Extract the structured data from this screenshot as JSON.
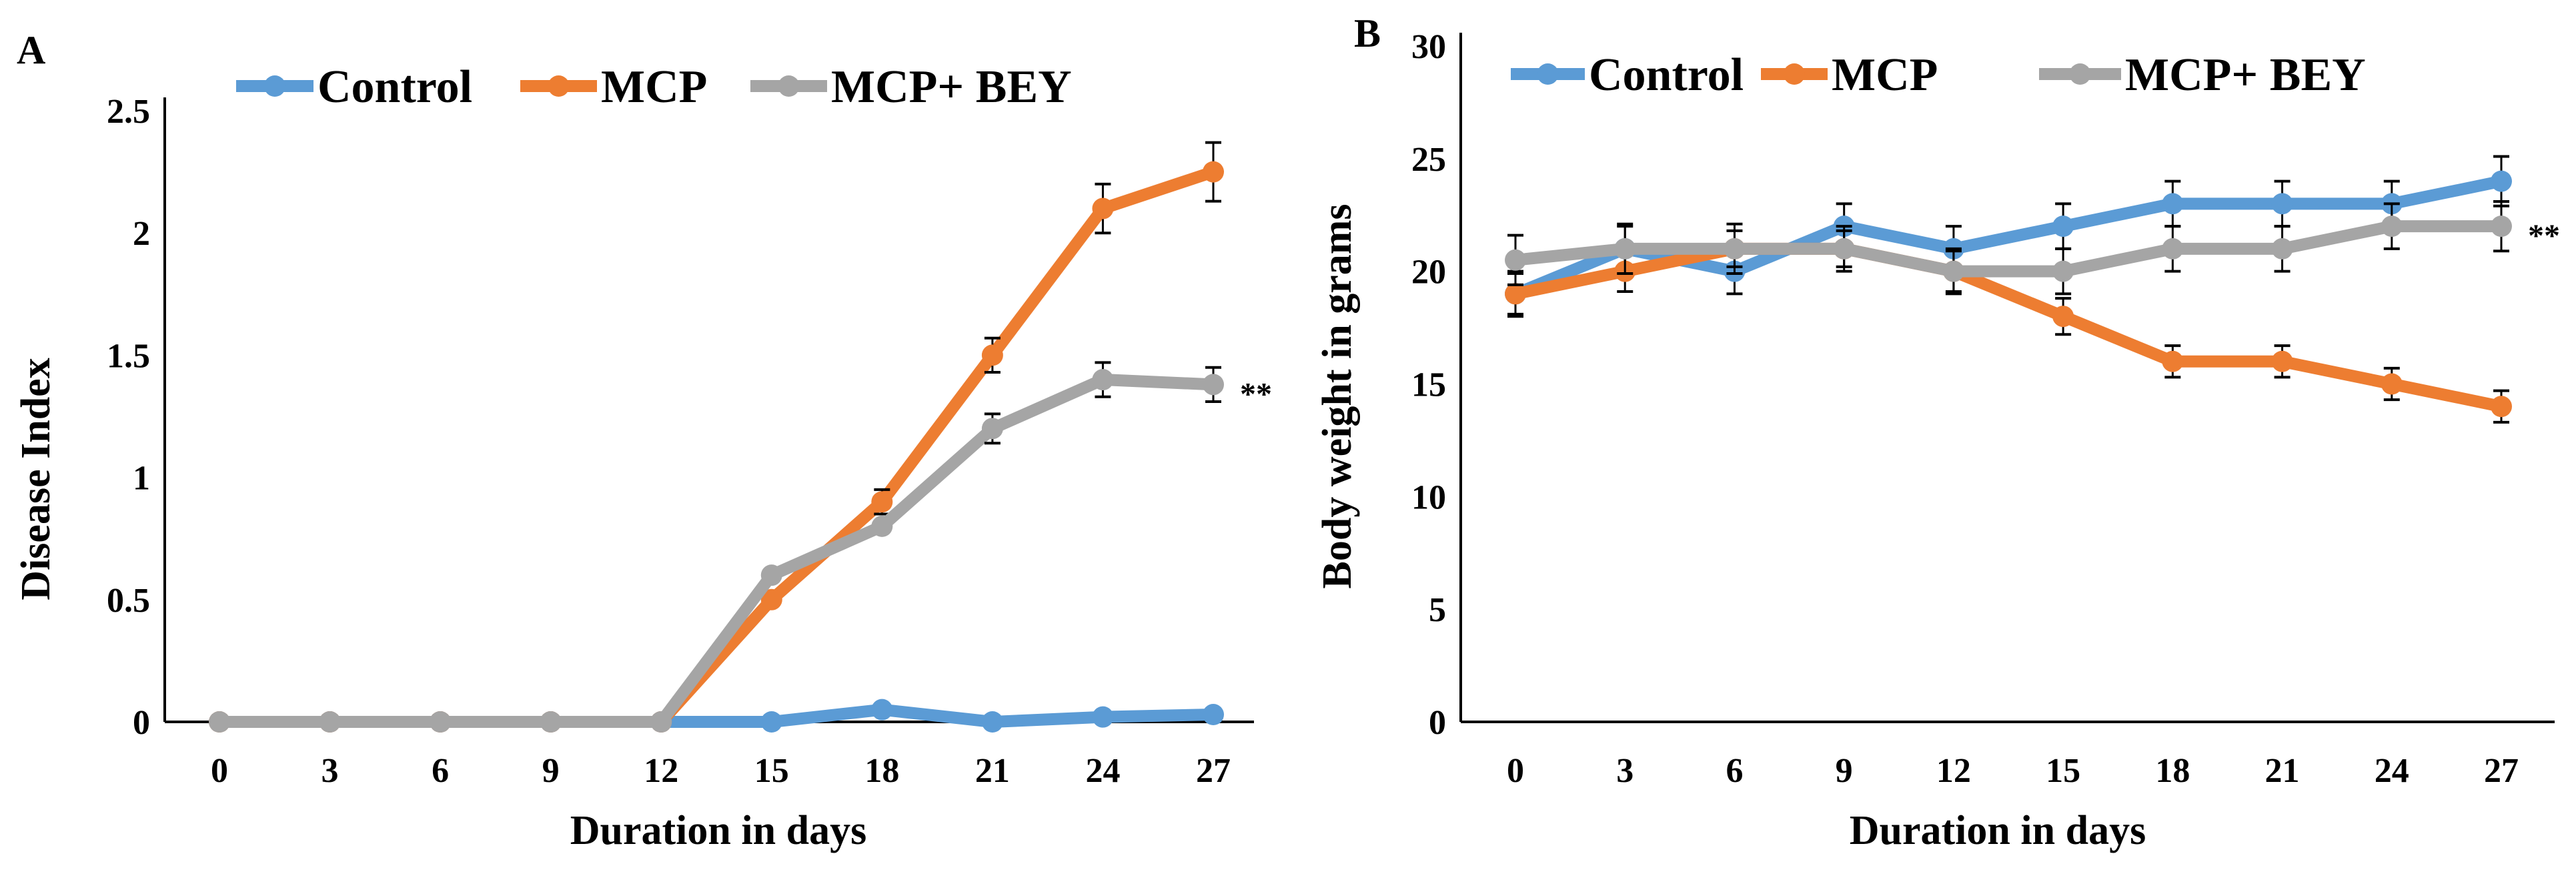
{
  "chart_data": [
    {
      "panel_label": "A",
      "type": "line",
      "title": "",
      "xlabel": "Duration in days",
      "ylabel": "Disease Index",
      "x": [
        0,
        3,
        6,
        9,
        12,
        15,
        18,
        21,
        24,
        27
      ],
      "x_tick_labels": [
        "0",
        "3",
        "6",
        "9",
        "12",
        "15",
        "18",
        "21",
        "24",
        "27"
      ],
      "ylim": [
        0,
        2.5
      ],
      "y_ticks": [
        0,
        0.5,
        1,
        1.5,
        2,
        2.5
      ],
      "y_tick_labels": [
        "0",
        "0.5",
        "1",
        "1.5",
        "2",
        "2.5"
      ],
      "grid": false,
      "legend_position": "top",
      "annotation": "**",
      "series": [
        {
          "name": "Control",
          "color": "#5B9BD5",
          "values": [
            0,
            0,
            0,
            0,
            0,
            0,
            0.05,
            0,
            0.02,
            0.03
          ],
          "errors": [
            0,
            0,
            0,
            0,
            0,
            0,
            0,
            0,
            0,
            0
          ]
        },
        {
          "name": "MCP",
          "color": "#ED7D31",
          "values": [
            0,
            0,
            0,
            0,
            0,
            0.5,
            0.9,
            1.5,
            2.1,
            2.25
          ],
          "errors": [
            0,
            0,
            0,
            0,
            0,
            0,
            0.05,
            0.07,
            0.1,
            0.12
          ]
        },
        {
          "name": "MCP+ BEY",
          "color": "#A5A5A5",
          "values": [
            0,
            0,
            0,
            0,
            0,
            0.6,
            0.8,
            1.2,
            1.4,
            1.38
          ],
          "errors": [
            0,
            0,
            0,
            0,
            0,
            0,
            0,
            0.06,
            0.07,
            0.07
          ]
        }
      ]
    },
    {
      "panel_label": "B",
      "type": "line",
      "title": "",
      "xlabel": "Duration in days",
      "ylabel": "Body weight in grams",
      "x": [
        0,
        3,
        6,
        9,
        12,
        15,
        18,
        21,
        24,
        27
      ],
      "x_tick_labels": [
        "0",
        "3",
        "6",
        "9",
        "12",
        "15",
        "18",
        "21",
        "24",
        "27"
      ],
      "ylim": [
        0,
        30
      ],
      "y_ticks": [
        0,
        5,
        10,
        15,
        20,
        25,
        30
      ],
      "y_tick_labels": [
        "0",
        "5",
        "10",
        "15",
        "20",
        "25",
        "30"
      ],
      "grid": false,
      "legend_position": "top",
      "annotation": "**",
      "series": [
        {
          "name": "Control",
          "color": "#5B9BD5",
          "values": [
            19,
            21,
            20,
            22,
            21,
            22,
            23,
            23,
            23,
            24
          ],
          "errors": [
            1,
            1,
            1,
            1,
            1,
            1,
            1,
            1,
            1,
            1.1
          ]
        },
        {
          "name": "MCP",
          "color": "#ED7D31",
          "values": [
            19,
            20,
            21,
            21,
            20,
            18,
            16,
            16,
            15,
            14
          ],
          "errors": [
            0.9,
            0.9,
            0.8,
            0.8,
            0.9,
            0.8,
            0.7,
            0.7,
            0.7,
            0.7
          ]
        },
        {
          "name": "MCP+ BEY",
          "color": "#A5A5A5",
          "values": [
            20.5,
            21,
            21,
            21,
            20,
            20,
            21,
            21,
            22,
            22
          ],
          "errors": [
            1.1,
            1.1,
            1.1,
            1,
            1,
            1,
            1,
            1,
            1,
            1.1
          ]
        }
      ]
    }
  ]
}
